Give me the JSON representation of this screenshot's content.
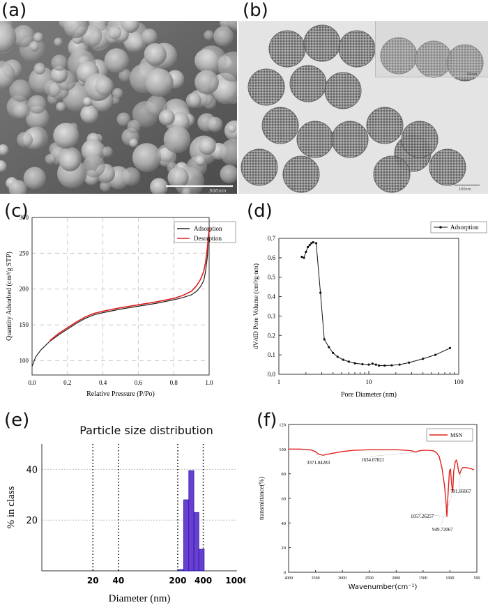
{
  "panels": {
    "a": {
      "letter": "(a)",
      "scale_bar": "500nm"
    },
    "b": {
      "letter": "(b)",
      "scale_bar": "100nm",
      "inset_scale_bar": "50nm"
    },
    "c": {
      "letter": "(c)"
    },
    "d": {
      "letter": "(d)"
    },
    "e": {
      "letter": "(e)"
    },
    "f": {
      "letter": "(f)"
    }
  },
  "colors": {
    "adsorption": "#222222",
    "desorption": "#e02020",
    "bar_fill": "#6a3fd0",
    "bar_edge": "#1a1aa8",
    "ftir": "#e0201c",
    "grid": "#cccccc"
  },
  "chart_data": [
    {
      "id": "c",
      "type": "line",
      "xlabel": "Relative Pressure (P/Po)",
      "ylabel": "Quantity Adsorbed (cm³/g STP)",
      "xlim": [
        0.0,
        1.0
      ],
      "ylim": [
        80,
        300
      ],
      "xticks": [
        "0.0",
        "0.2",
        "0.4",
        "0.6",
        "0.8",
        "1.0"
      ],
      "yticks": [
        "100",
        "150",
        "200",
        "250",
        "300"
      ],
      "grid": true,
      "legend": "top-right",
      "series": [
        {
          "name": "Adsorption",
          "x": [
            0.0,
            0.02,
            0.05,
            0.1,
            0.15,
            0.2,
            0.25,
            0.3,
            0.35,
            0.4,
            0.5,
            0.6,
            0.7,
            0.8,
            0.85,
            0.9,
            0.93,
            0.95,
            0.97,
            0.98,
            0.99,
            1.0
          ],
          "y": [
            92,
            105,
            115,
            127,
            136,
            144,
            152,
            159,
            164,
            167,
            172,
            176,
            180,
            185,
            188,
            192,
            197,
            203,
            212,
            225,
            245,
            285
          ]
        },
        {
          "name": "Desorption",
          "x": [
            0.1,
            0.15,
            0.2,
            0.25,
            0.3,
            0.35,
            0.4,
            0.5,
            0.6,
            0.7,
            0.8,
            0.85,
            0.9,
            0.93,
            0.95,
            0.97,
            0.98,
            0.99,
            1.0
          ],
          "y": [
            128,
            138,
            146,
            154,
            161,
            166,
            169,
            174,
            178,
            182,
            187,
            191,
            197,
            205,
            213,
            225,
            238,
            258,
            285
          ]
        }
      ]
    },
    {
      "id": "d",
      "type": "line",
      "xlabel": "Pore Diameter (nm)",
      "ylabel": "dV/dD Pore Volume (cm³/g·nm)",
      "xscale": "log",
      "xlim": [
        1,
        100
      ],
      "ylim": [
        0.0,
        0.7
      ],
      "xticks": [
        "1",
        "10",
        "100"
      ],
      "yticks": [
        "0.0",
        "0.1",
        "0.2",
        "0.3",
        "0.4",
        "0.5",
        "0.6",
        "0.7"
      ],
      "legend": "top-right",
      "series": [
        {
          "name": "Adsorption",
          "x": [
            1.8,
            1.9,
            2.0,
            2.1,
            2.2,
            2.3,
            2.4,
            2.6,
            2.9,
            3.2,
            3.6,
            4.0,
            4.5,
            5.2,
            6.0,
            7.0,
            8.5,
            10,
            11,
            12,
            13,
            15,
            18,
            22,
            28,
            40,
            55,
            80
          ],
          "y": [
            0.605,
            0.6,
            0.63,
            0.655,
            0.665,
            0.675,
            0.68,
            0.675,
            0.42,
            0.18,
            0.14,
            0.11,
            0.09,
            0.075,
            0.065,
            0.057,
            0.052,
            0.05,
            0.055,
            0.05,
            0.045,
            0.045,
            0.046,
            0.05,
            0.06,
            0.08,
            0.1,
            0.135
          ]
        }
      ]
    },
    {
      "id": "e",
      "type": "bar",
      "title": "Particle size distribution",
      "xlabel": "Diameter (nm)",
      "ylabel": "% in class",
      "xscale": "log",
      "xlim": [
        5,
        1000
      ],
      "ylim": [
        0,
        50
      ],
      "xticks": [
        "20",
        "40",
        "200",
        "400",
        "1000"
      ],
      "yticks": [
        "20",
        "40"
      ],
      "reference_lines_x": [
        20,
        40,
        200,
        400
      ],
      "bins": [
        {
          "x0": 205,
          "x1": 235,
          "value": 0.5
        },
        {
          "x0": 235,
          "x1": 270,
          "value": 28
        },
        {
          "x0": 270,
          "x1": 310,
          "value": 39.5
        },
        {
          "x0": 310,
          "x1": 355,
          "value": 23
        },
        {
          "x0": 355,
          "x1": 410,
          "value": 8.5
        }
      ]
    },
    {
      "id": "f",
      "type": "line",
      "xlabel": "Wavenumber(cm⁻¹)",
      "ylabel": "transmittance(%)",
      "xlim": [
        4000,
        500
      ],
      "ylim": [
        0,
        120
      ],
      "xticks": [
        "4000",
        "3500",
        "3000",
        "2500",
        "2000",
        "1500",
        "1000",
        "500"
      ],
      "yticks": [
        "0",
        "20",
        "40",
        "60",
        "80",
        "100",
        "120"
      ],
      "legend": "top-right",
      "series": [
        {
          "name": "MSN",
          "x": [
            4000,
            3800,
            3600,
            3500,
            3450,
            3400,
            3371,
            3300,
            3200,
            3000,
            2800,
            2500,
            2300,
            2000,
            1800,
            1700,
            1634,
            1580,
            1500,
            1400,
            1300,
            1250,
            1200,
            1150,
            1100,
            1070,
            1057,
            1040,
            1010,
            990,
            970,
            949,
            930,
            900,
            880,
            860,
            840,
            820,
            800,
            791,
            780,
            760,
            700,
            600,
            550
          ],
          "y": [
            100,
            100,
            99.5,
            98,
            96,
            95.5,
            95,
            95.5,
            96.5,
            98,
            99,
            99.5,
            99.5,
            99.5,
            99,
            98.5,
            97.5,
            98.5,
            99,
            99,
            98.5,
            97,
            94,
            85,
            70,
            55,
            45,
            60,
            82,
            84,
            72,
            65,
            82,
            90,
            91,
            88,
            82,
            80,
            82,
            83,
            84,
            85,
            85,
            84,
            83
          ]
        }
      ],
      "annotations": [
        "3371.04283",
        "1634.07821",
        "1057.26257",
        "949.72067",
        "791.66667"
      ]
    }
  ]
}
